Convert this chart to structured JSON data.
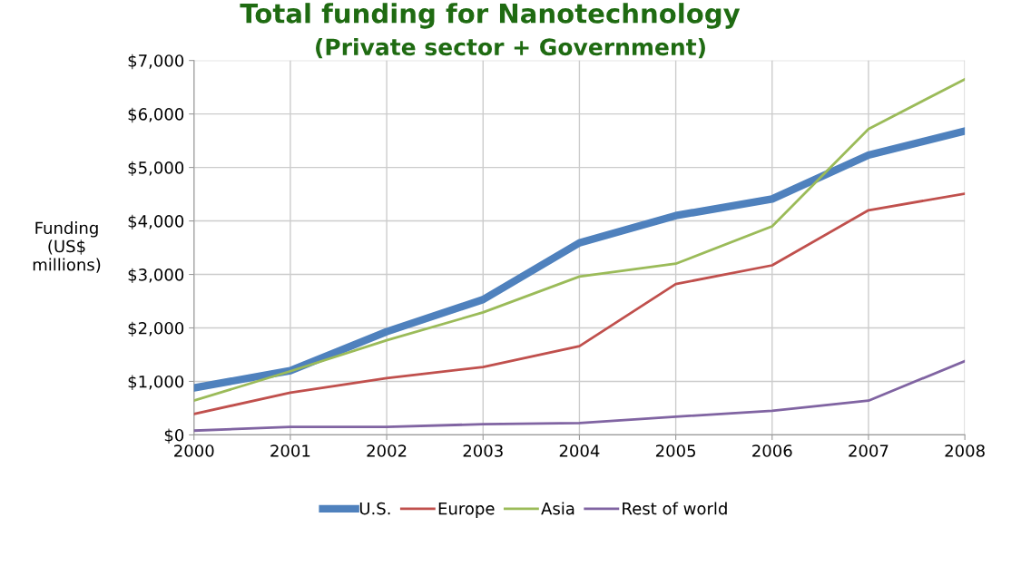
{
  "chart_data": {
    "type": "line",
    "title": "Total funding for Nanotechnology",
    "subtitle": "(Private sector + Government)",
    "ylabel": "Funding\n(US$\nmillions)",
    "x": [
      2000,
      2001,
      2002,
      2003,
      2004,
      2005,
      2006,
      2007,
      2008
    ],
    "xlim": [
      2000,
      2008
    ],
    "xticks": [
      2000,
      2001,
      2002,
      2003,
      2004,
      2005,
      2006,
      2007,
      2008
    ],
    "ylim": [
      0,
      7000
    ],
    "yticks": [
      {
        "value": 0,
        "label": "$0"
      },
      {
        "value": 1000,
        "label": "$1,000"
      },
      {
        "value": 2000,
        "label": "$2,000"
      },
      {
        "value": 3000,
        "label": "$3,000"
      },
      {
        "value": 4000,
        "label": "$4,000"
      },
      {
        "value": 5000,
        "label": "$5,000"
      },
      {
        "value": 6000,
        "label": "$6,000"
      },
      {
        "value": 7000,
        "label": "$7,000"
      }
    ],
    "grid": true,
    "legend": "bottom",
    "marker": "none",
    "line_style": "solid",
    "series": [
      {
        "name": "U.S.",
        "color": "#4f81bd",
        "values": [
          880,
          1200,
          1930,
          2530,
          3590,
          4100,
          4410,
          5230,
          5680
        ]
      },
      {
        "name": "Europe",
        "color": "#c0504d",
        "values": [
          390,
          790,
          1060,
          1270,
          1660,
          2820,
          3170,
          4200,
          4510
        ]
      },
      {
        "name": "Asia",
        "color": "#9bbb59",
        "values": [
          640,
          1190,
          1770,
          2290,
          2960,
          3200,
          3900,
          5720,
          6650
        ]
      },
      {
        "name": "Rest of world",
        "color": "#8064a2",
        "values": [
          80,
          150,
          150,
          200,
          220,
          340,
          450,
          640,
          1380
        ]
      }
    ]
  }
}
